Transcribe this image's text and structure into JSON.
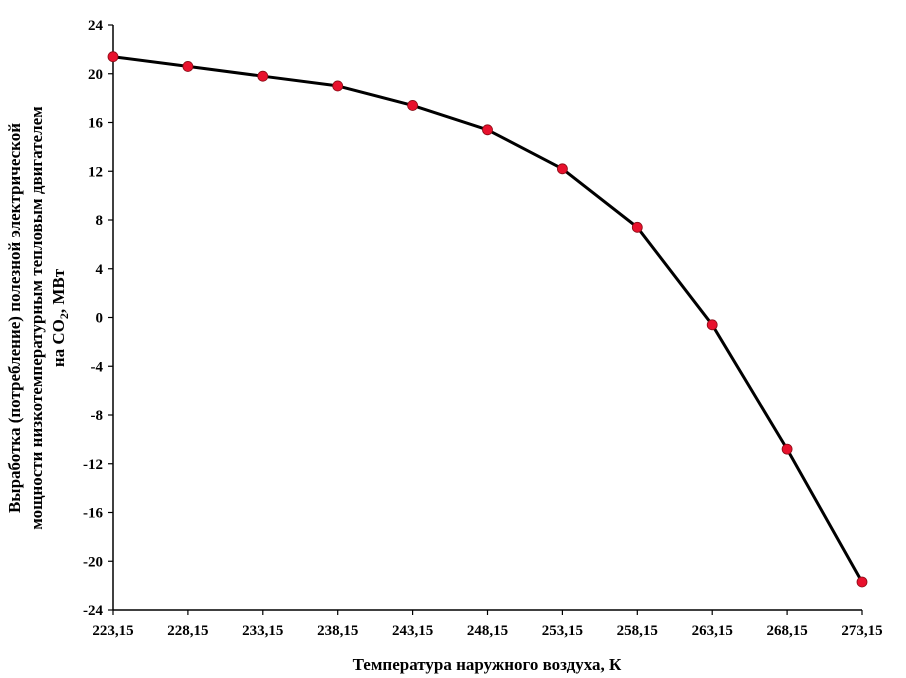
{
  "chart_data": {
    "type": "line",
    "title": "",
    "xlabel": "Температура наружного воздуха, К",
    "ylabel_lines": [
      "Выработка (потребление) полезной электрической",
      "мощности низкотемпературным тепловым двигателем",
      "на CO",
      "2",
      ", МВт"
    ],
    "x_ticks": [
      "223,15",
      "228,15",
      "233,15",
      "238,15",
      "243,15",
      "248,15",
      "253,15",
      "258,15",
      "263,15",
      "268,15",
      "273,15"
    ],
    "y_ticks": [
      "-24",
      "-20",
      "-16",
      "-12",
      "-8",
      "-4",
      "0",
      "4",
      "8",
      "12",
      "16",
      "20",
      "24"
    ],
    "ylim": [
      -24,
      24
    ],
    "grid": false,
    "line_color": "#000000",
    "marker_color": "#e8112d",
    "series": [
      {
        "x": [
          223.15,
          228.15,
          233.15,
          238.15,
          243.15,
          248.15,
          253.15,
          258.15,
          263.15,
          268.15,
          273.15
        ],
        "values": [
          21.4,
          20.6,
          19.8,
          19.0,
          17.4,
          15.4,
          12.2,
          7.4,
          -0.6,
          -10.8,
          -21.7
        ]
      }
    ]
  }
}
